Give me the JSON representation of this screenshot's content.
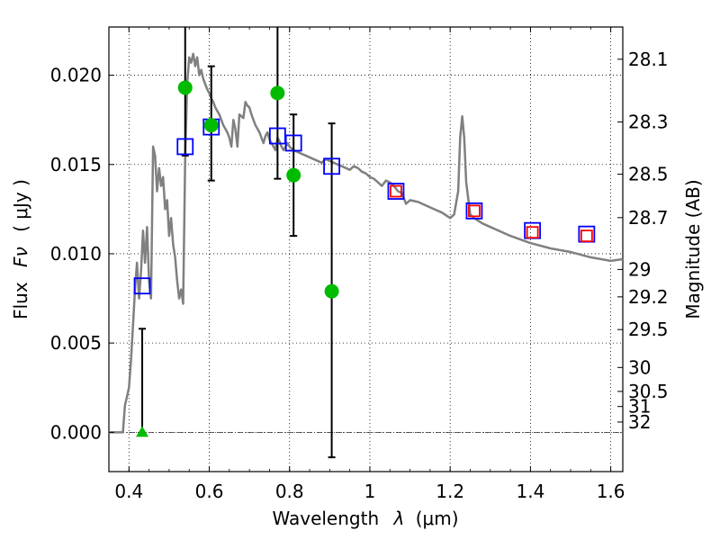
{
  "chart_data": {
    "type": "scatter",
    "xlabel_text": "Wavelength",
    "xlabel_symbol": "λ",
    "xlabel_unit": "(μm)",
    "ylabel_text": "Flux",
    "ylabel_symbol": "Fν",
    "ylabel_unit": "( μJy )",
    "y2label": "Magnitude (AB)",
    "xlim": [
      0.35,
      1.63
    ],
    "ylim": [
      -0.0022,
      0.0227
    ],
    "grid": true,
    "x_ticks": [
      {
        "value": 0.4,
        "label": "0.4"
      },
      {
        "value": 0.6,
        "label": "0.6"
      },
      {
        "value": 0.8,
        "label": "0.8"
      },
      {
        "value": 1.0,
        "label": "1"
      },
      {
        "value": 1.2,
        "label": "1.2"
      },
      {
        "value": 1.4,
        "label": "1.4"
      },
      {
        "value": 1.6,
        "label": "1.6"
      }
    ],
    "y_ticks": [
      {
        "value": 0.0,
        "label": "0.000"
      },
      {
        "value": 0.005,
        "label": "0.005"
      },
      {
        "value": 0.01,
        "label": "0.010"
      },
      {
        "value": 0.015,
        "label": "0.015"
      },
      {
        "value": 0.02,
        "label": "0.020"
      }
    ],
    "mag_ticks": [
      {
        "value": 28.1,
        "label": "28.1"
      },
      {
        "value": 28.3,
        "label": "28.3"
      },
      {
        "value": 28.5,
        "label": "28.5"
      },
      {
        "value": 28.7,
        "label": "28.7"
      },
      {
        "value": 29,
        "label": "29"
      },
      {
        "value": 29.2,
        "label": "29.2"
      },
      {
        "value": 29.5,
        "label": "29.5"
      },
      {
        "value": 30,
        "label": "30"
      },
      {
        "value": 30.5,
        "label": "30.5"
      },
      {
        "value": 31,
        "label": "31"
      },
      {
        "value": 32,
        "label": "32"
      }
    ],
    "model_sed": {
      "color": "#808080",
      "x": [
        0.35,
        0.385,
        0.39,
        0.395,
        0.4,
        0.405,
        0.41,
        0.415,
        0.42,
        0.425,
        0.43,
        0.435,
        0.44,
        0.445,
        0.45,
        0.455,
        0.46,
        0.465,
        0.47,
        0.475,
        0.48,
        0.485,
        0.49,
        0.495,
        0.5,
        0.505,
        0.51,
        0.515,
        0.52,
        0.525,
        0.53,
        0.535,
        0.54,
        0.545,
        0.55,
        0.555,
        0.56,
        0.565,
        0.57,
        0.575,
        0.58,
        0.585,
        0.59,
        0.595,
        0.6,
        0.605,
        0.61,
        0.615,
        0.62,
        0.625,
        0.63,
        0.635,
        0.64,
        0.645,
        0.65,
        0.655,
        0.66,
        0.665,
        0.67,
        0.675,
        0.68,
        0.685,
        0.69,
        0.695,
        0.7,
        0.705,
        0.71,
        0.715,
        0.72,
        0.725,
        0.73,
        0.735,
        0.74,
        0.745,
        0.75,
        0.755,
        0.76,
        0.765,
        0.77,
        0.775,
        0.78,
        0.785,
        0.79,
        0.795,
        0.8,
        0.81,
        0.82,
        0.83,
        0.84,
        0.85,
        0.86,
        0.87,
        0.88,
        0.89,
        0.9,
        0.91,
        0.92,
        0.93,
        0.94,
        0.95,
        0.96,
        0.97,
        0.98,
        0.99,
        1.0,
        1.01,
        1.02,
        1.03,
        1.04,
        1.05,
        1.06,
        1.07,
        1.08,
        1.09,
        1.1,
        1.12,
        1.14,
        1.16,
        1.18,
        1.2,
        1.21,
        1.22,
        1.225,
        1.23,
        1.235,
        1.24,
        1.25,
        1.26,
        1.28,
        1.3,
        1.35,
        1.4,
        1.45,
        1.5,
        1.55,
        1.6,
        1.63
      ],
      "y": [
        0.0,
        0.0,
        0.0015,
        0.002,
        0.0025,
        0.004,
        0.006,
        0.008,
        0.0095,
        0.0075,
        0.009,
        0.0113,
        0.0095,
        0.0115,
        0.0085,
        0.0075,
        0.016,
        0.0155,
        0.0135,
        0.0148,
        0.0138,
        0.0143,
        0.0125,
        0.013,
        0.011,
        0.012,
        0.0105,
        0.0098,
        0.0085,
        0.0075,
        0.008,
        0.0072,
        0.0155,
        0.0195,
        0.021,
        0.0207,
        0.0212,
        0.0205,
        0.021,
        0.02,
        0.0203,
        0.0198,
        0.0195,
        0.0192,
        0.019,
        0.0187,
        0.0185,
        0.0182,
        0.018,
        0.0178,
        0.0175,
        0.0172,
        0.017,
        0.0168,
        0.0165,
        0.016,
        0.0175,
        0.017,
        0.016,
        0.0178,
        0.0177,
        0.0176,
        0.0185,
        0.0183,
        0.0182,
        0.0178,
        0.0175,
        0.0172,
        0.017,
        0.0168,
        0.0165,
        0.0162,
        0.0166,
        0.0168,
        0.0164,
        0.0162,
        0.016,
        0.0158,
        0.0165,
        0.0163,
        0.016,
        0.0158,
        0.016,
        0.0162,
        0.016,
        0.0158,
        0.0157,
        0.0156,
        0.0155,
        0.0154,
        0.0153,
        0.0152,
        0.0151,
        0.0153,
        0.0152,
        0.0151,
        0.015,
        0.0149,
        0.0148,
        0.0147,
        0.0149,
        0.0148,
        0.0146,
        0.0145,
        0.0143,
        0.0142,
        0.014,
        0.0138,
        0.0141,
        0.014,
        0.0138,
        0.0135,
        0.0134,
        0.0128,
        0.013,
        0.0129,
        0.0127,
        0.0125,
        0.0123,
        0.012,
        0.0122,
        0.0135,
        0.0165,
        0.0177,
        0.0165,
        0.014,
        0.0122,
        0.012,
        0.0117,
        0.0115,
        0.011,
        0.0106,
        0.0103,
        0.0101,
        0.0098,
        0.0096,
        0.0097
      ]
    },
    "series": [
      {
        "marker": "open-square",
        "color": "#0000ff",
        "x": [
          0.433,
          0.54,
          0.605,
          0.77,
          0.81,
          0.905,
          1.065,
          1.26,
          1.405,
          1.54
        ],
        "y": [
          0.0082,
          0.016,
          0.0171,
          0.0166,
          0.0162,
          0.0149,
          0.0135,
          0.0124,
          0.0113,
          0.0111
        ]
      },
      {
        "marker": "open-square",
        "color": "#ff0000",
        "x": [
          1.065,
          1.26,
          1.405,
          1.54
        ],
        "y": [
          0.0135,
          0.0124,
          0.0112,
          0.011
        ]
      },
      {
        "marker": "filled-circle",
        "color": "#00bb00",
        "x": [
          0.54,
          0.605,
          0.77,
          0.81,
          0.905
        ],
        "y": [
          0.0193,
          0.0172,
          0.019,
          0.0144,
          0.0079
        ],
        "y_err_low": [
          0.0038,
          0.0031,
          0.0048,
          0.0034,
          0.0093
        ],
        "y_err_high": [
          0.0227,
          0.0033,
          0.0227,
          0.0034,
          0.0094
        ]
      },
      {
        "marker": "filled-triangle",
        "color": "#00bb00",
        "x": [
          0.433
        ],
        "y": [
          0.0
        ],
        "y_err_low": [
          0.0
        ],
        "y_err_high": [
          0.0058
        ]
      }
    ]
  }
}
